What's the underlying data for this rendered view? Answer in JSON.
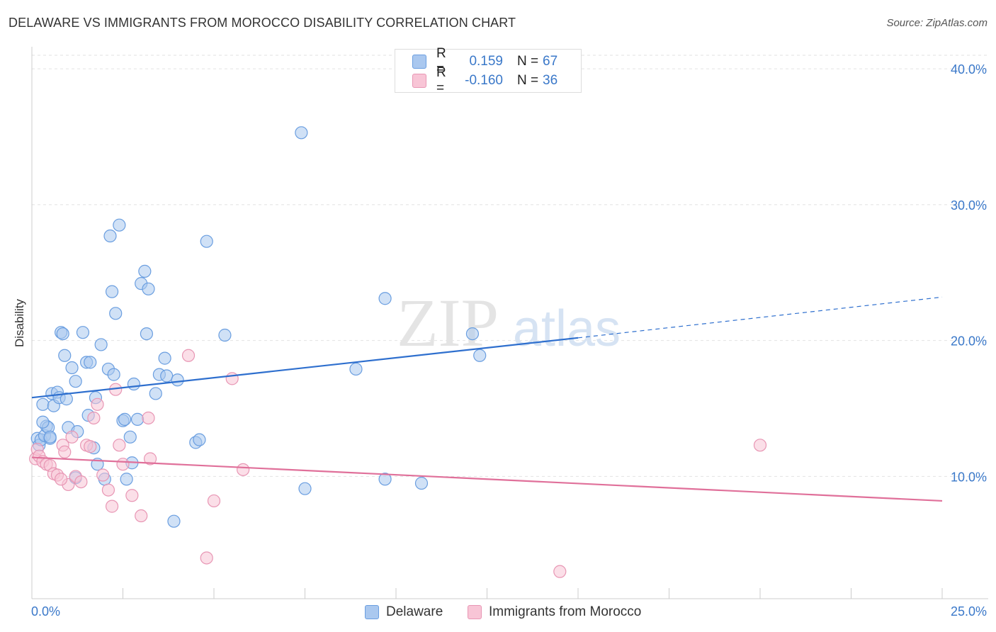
{
  "title": "DELAWARE VS IMMIGRANTS FROM MOROCCO DISABILITY CORRELATION CHART",
  "source": "Source: ZipAtlas.com",
  "watermark": {
    "zip": "ZIP",
    "atlas": "atlas"
  },
  "legend": {
    "rows": [
      {
        "r_label": "R =",
        "r_value": "0.159",
        "n_label": "N =",
        "n_value": "67",
        "color": "#aac8ef",
        "border": "#6a9ee0"
      },
      {
        "r_label": "R =",
        "r_value": "-0.160",
        "n_label": "N =",
        "n_value": "36",
        "color": "#f8c5d6",
        "border": "#e896b4"
      }
    ]
  },
  "bottom_legend": [
    {
      "label": "Delaware",
      "color": "#aac8ef",
      "border": "#6a9ee0"
    },
    {
      "label": "Immigrants from Morocco",
      "color": "#f8c5d6",
      "border": "#e896b4"
    }
  ],
  "chart_data": {
    "type": "scatter",
    "xlabel": "",
    "ylabel": "Disability",
    "xlim": [
      0,
      25
    ],
    "ylim": [
      1.0,
      41.0
    ],
    "x_tick_labels": [
      "0.0%",
      "25.0%"
    ],
    "y_ticks": [
      10,
      20,
      30,
      40
    ],
    "y_tick_labels": [
      "10.0%",
      "20.0%",
      "30.0%",
      "40.0%"
    ],
    "grid": true,
    "series": [
      {
        "name": "Delaware",
        "color": "#aac8ef",
        "edge": "#6a9ee0",
        "trend_color": "#2e6fce",
        "trend": {
          "x0": 0.0,
          "y0": 15.8,
          "x1": 15.0,
          "y1": 20.2,
          "x_dash_end": 25.0,
          "y_dash_end": 23.2
        },
        "points": [
          [
            0.15,
            12.8
          ],
          [
            0.2,
            12.3
          ],
          [
            0.25,
            12.7
          ],
          [
            0.3,
            15.3
          ],
          [
            0.35,
            13.0
          ],
          [
            0.4,
            13.7
          ],
          [
            0.45,
            13.6
          ],
          [
            0.5,
            12.8
          ],
          [
            0.55,
            16.1
          ],
          [
            0.6,
            15.2
          ],
          [
            0.7,
            16.2
          ],
          [
            0.75,
            15.8
          ],
          [
            0.8,
            20.6
          ],
          [
            0.85,
            20.5
          ],
          [
            0.9,
            18.9
          ],
          [
            0.95,
            15.7
          ],
          [
            1.0,
            13.6
          ],
          [
            1.1,
            18.0
          ],
          [
            1.2,
            17.0
          ],
          [
            1.25,
            13.3
          ],
          [
            1.4,
            20.6
          ],
          [
            1.5,
            18.4
          ],
          [
            1.6,
            18.4
          ],
          [
            1.55,
            14.5
          ],
          [
            1.7,
            12.1
          ],
          [
            1.75,
            15.8
          ],
          [
            1.8,
            10.9
          ],
          [
            1.9,
            19.7
          ],
          [
            2.0,
            9.8
          ],
          [
            2.1,
            17.9
          ],
          [
            2.15,
            27.7
          ],
          [
            2.2,
            23.6
          ],
          [
            2.25,
            17.5
          ],
          [
            2.3,
            22.0
          ],
          [
            2.4,
            28.5
          ],
          [
            2.5,
            14.1
          ],
          [
            2.55,
            14.2
          ],
          [
            2.6,
            9.8
          ],
          [
            2.7,
            12.9
          ],
          [
            2.75,
            11.0
          ],
          [
            2.8,
            16.8
          ],
          [
            2.9,
            14.2
          ],
          [
            3.0,
            24.2
          ],
          [
            3.1,
            25.1
          ],
          [
            3.15,
            20.5
          ],
          [
            3.2,
            23.8
          ],
          [
            3.4,
            16.1
          ],
          [
            3.5,
            17.5
          ],
          [
            3.7,
            17.4
          ],
          [
            3.65,
            18.7
          ],
          [
            3.9,
            6.7
          ],
          [
            4.0,
            17.1
          ],
          [
            4.5,
            12.5
          ],
          [
            4.6,
            12.7
          ],
          [
            4.8,
            27.3
          ],
          [
            5.3,
            20.4
          ],
          [
            7.4,
            35.3
          ],
          [
            7.5,
            9.1
          ],
          [
            8.9,
            17.9
          ],
          [
            9.7,
            23.1
          ],
          [
            9.7,
            9.8
          ],
          [
            10.7,
            9.5
          ],
          [
            12.1,
            20.5
          ],
          [
            12.3,
            18.9
          ],
          [
            1.2,
            9.9
          ],
          [
            0.3,
            14.0
          ],
          [
            0.5,
            12.9
          ]
        ]
      },
      {
        "name": "Immigrants from Morocco",
        "color": "#f8c5d6",
        "edge": "#e896b4",
        "trend_color": "#e0709a",
        "trend": {
          "x0": 0.0,
          "y0": 11.4,
          "x1": 25.0,
          "y1": 8.2
        },
        "points": [
          [
            0.1,
            11.3
          ],
          [
            0.15,
            12.0
          ],
          [
            0.2,
            11.5
          ],
          [
            0.3,
            11.1
          ],
          [
            0.4,
            10.9
          ],
          [
            0.5,
            10.8
          ],
          [
            0.6,
            10.2
          ],
          [
            0.7,
            10.1
          ],
          [
            0.85,
            12.3
          ],
          [
            0.9,
            11.8
          ],
          [
            1.0,
            9.4
          ],
          [
            1.1,
            12.9
          ],
          [
            1.2,
            10.0
          ],
          [
            1.35,
            9.6
          ],
          [
            1.5,
            12.3
          ],
          [
            1.6,
            12.2
          ],
          [
            1.7,
            14.3
          ],
          [
            1.8,
            15.3
          ],
          [
            1.95,
            10.1
          ],
          [
            2.1,
            9.0
          ],
          [
            2.2,
            7.8
          ],
          [
            2.3,
            16.4
          ],
          [
            2.4,
            12.3
          ],
          [
            2.5,
            10.9
          ],
          [
            2.75,
            8.6
          ],
          [
            3.0,
            7.1
          ],
          [
            3.2,
            14.3
          ],
          [
            3.25,
            11.3
          ],
          [
            4.3,
            18.9
          ],
          [
            4.8,
            4.0
          ],
          [
            5.0,
            8.2
          ],
          [
            5.5,
            17.2
          ],
          [
            5.8,
            10.5
          ],
          [
            14.5,
            3.0
          ],
          [
            20.0,
            12.3
          ],
          [
            0.8,
            9.8
          ]
        ]
      }
    ]
  }
}
